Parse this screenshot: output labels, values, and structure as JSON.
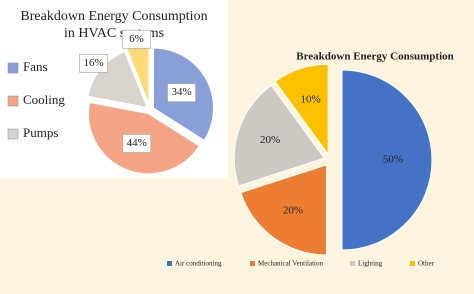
{
  "chart_data": [
    {
      "type": "pie",
      "title": [
        "Breakdown Energy Consumption",
        "in HVAC systems"
      ],
      "categories": [
        "Fans",
        "Cooling",
        "Pumps",
        null
      ],
      "values": [
        34,
        44,
        16,
        6
      ],
      "value_labels": [
        "34%",
        "44%",
        "16%",
        "6%"
      ],
      "colors": [
        "#8a9fd8",
        "#f4a585",
        "#d9d3cd",
        "#ffd877"
      ],
      "legend": "left"
    },
    {
      "type": "pie",
      "title": "Breakdown Energy Consumption",
      "categories": [
        "Air conditioning",
        "Mechanical Ventilation",
        "Lighting",
        "Other"
      ],
      "values": [
        50,
        20,
        20,
        10
      ],
      "value_labels": [
        "50%",
        "20%",
        "20%",
        "10%"
      ],
      "colors": [
        "#4472c4",
        "#ed7d31",
        "#cdc8c2",
        "#ffc000"
      ],
      "legend": "bottom"
    }
  ]
}
